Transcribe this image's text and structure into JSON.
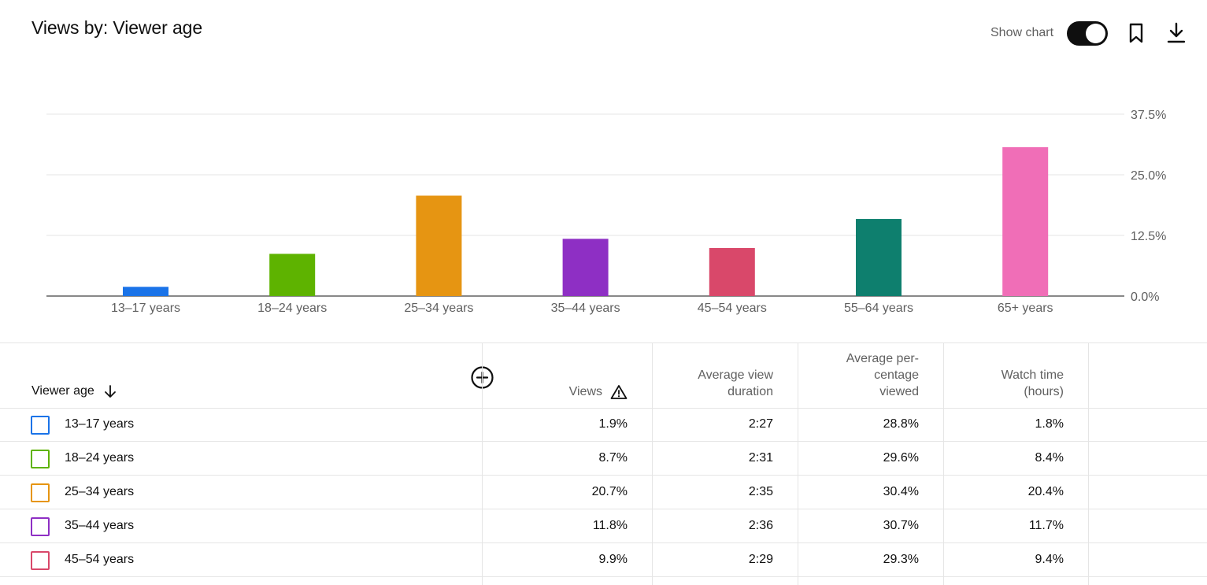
{
  "header": {
    "title": "Views by: Viewer age",
    "show_chart_label": "Show chart",
    "show_chart_on": true
  },
  "icons": {
    "bookmark": "bookmark-icon",
    "download": "download-icon",
    "sort": "arrow-down-icon",
    "warning": "warning-icon",
    "add_column": "add-circle-icon"
  },
  "chart_data": {
    "type": "bar",
    "categories": [
      "13–17 years",
      "18–24 years",
      "25–34 years",
      "35–44 years",
      "45–54 years",
      "55–64 years",
      "65+ years"
    ],
    "values": [
      1.9,
      8.7,
      20.7,
      11.8,
      9.9,
      15.9,
      30.7
    ],
    "colors": [
      "#1a73e8",
      "#5eb300",
      "#e69512",
      "#8e2fc4",
      "#d9486a",
      "#0e7f6e",
      "#f06eb7"
    ],
    "y_ticks": [
      "37.5%",
      "25.0%",
      "12.5%",
      "0.0%"
    ],
    "y_tick_values": [
      37.5,
      25.0,
      12.5,
      0.0
    ],
    "ylim": [
      0,
      37.5
    ],
    "y_axis_side": "right",
    "grid": true
  },
  "table": {
    "first_header": "Viewer age",
    "columns": [
      {
        "label_lines": [
          "Views"
        ]
      },
      {
        "label_lines": [
          "Average view",
          "duration"
        ]
      },
      {
        "label_lines": [
          "Average per-",
          "centage",
          "viewed"
        ]
      },
      {
        "label_lines": [
          "Watch time",
          "(hours)"
        ]
      }
    ],
    "rows": [
      {
        "label": "13–17 years",
        "color": "#1a73e8",
        "values": [
          "1.9%",
          "2:27",
          "28.8%",
          "1.8%"
        ]
      },
      {
        "label": "18–24 years",
        "color": "#5eb300",
        "values": [
          "8.7%",
          "2:31",
          "29.6%",
          "8.4%"
        ]
      },
      {
        "label": "25–34 years",
        "color": "#e69512",
        "values": [
          "20.7%",
          "2:35",
          "30.4%",
          "20.4%"
        ]
      },
      {
        "label": "35–44 years",
        "color": "#8e2fc4",
        "values": [
          "11.8%",
          "2:36",
          "30.7%",
          "11.7%"
        ]
      },
      {
        "label": "45–54 years",
        "color": "#d9486a",
        "values": [
          "9.9%",
          "2:29",
          "29.3%",
          "9.4%"
        ]
      }
    ]
  }
}
